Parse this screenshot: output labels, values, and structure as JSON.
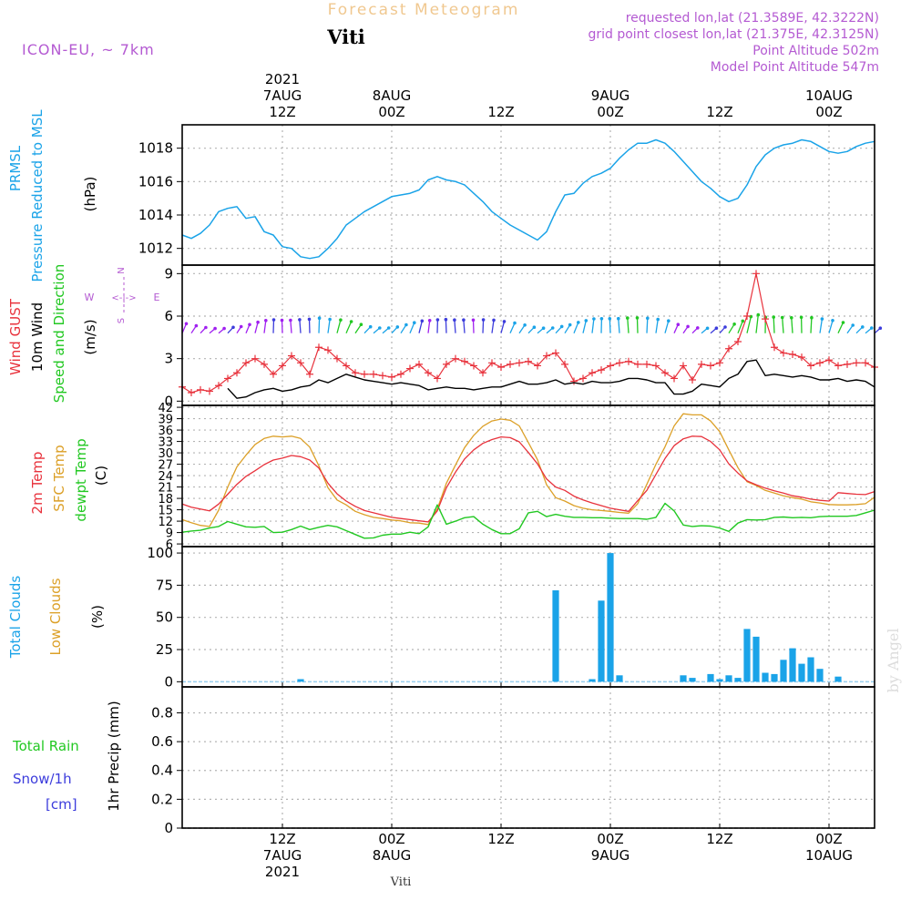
{
  "header": {
    "title": "Forecast Meteogram",
    "location": "Viti",
    "model": "ICON-EU, ~ 7km",
    "requested": "requested lon,lat (21.3589E, 42.3222N)",
    "grid_point": "grid point closest lon,lat (21.375E, 42.3125N)",
    "point_altitude": "Point Altitude 502m",
    "model_altitude": "Model Point Altitude 547m",
    "credit": "by Angel",
    "footer_location": "Viti"
  },
  "time_axis": {
    "top_labels": [
      {
        "x": 12,
        "lines": [
          "2021",
          "7AUG",
          "12Z"
        ]
      },
      {
        "x": 24,
        "lines": [
          "8AUG",
          "00Z"
        ]
      },
      {
        "x": 36,
        "lines": [
          "12Z"
        ]
      },
      {
        "x": 48,
        "lines": [
          "9AUG",
          "00Z"
        ]
      },
      {
        "x": 60,
        "lines": [
          "12Z"
        ]
      },
      {
        "x": 72,
        "lines": [
          "10AUG",
          "00Z"
        ]
      }
    ],
    "bottom_labels": [
      {
        "x": 12,
        "lines": [
          "12Z",
          "7AUG",
          "2021"
        ]
      },
      {
        "x": 24,
        "lines": [
          "00Z",
          "8AUG"
        ]
      },
      {
        "x": 36,
        "lines": [
          "12Z"
        ]
      },
      {
        "x": 48,
        "lines": [
          "00Z",
          "9AUG"
        ]
      },
      {
        "x": 60,
        "lines": [
          "12Z"
        ]
      },
      {
        "x": 72,
        "lines": [
          "00Z",
          "10AUG"
        ]
      }
    ]
  },
  "colors": {
    "pressure": "#1aa3e8",
    "gust": "#e8323c",
    "wind": "#000000",
    "t2m": "#e8323c",
    "sfc": "#dca028",
    "dew": "#22c822",
    "clouds_total": "#1aa3e8",
    "clouds_low": "#dca028",
    "rain": "#22c822",
    "snow": "#3c3cdc",
    "meta": "#b45ad2",
    "title": "#f0c890"
  },
  "panels": {
    "pressure": {
      "label_lines": [
        "PRMSL",
        "Pressure Reduced to MSL"
      ],
      "unit": "(hPa)"
    },
    "wind": {
      "label_lines": [
        "Wind GUST",
        "10m Wind",
        "Speed and Direction"
      ],
      "unit": "(m/s)",
      "compass": {
        "n": "N",
        "s": "S",
        "w": "W",
        "e": "E",
        "arrows": "<-|->"
      }
    },
    "temp": {
      "label_lines": [
        "2m Temp",
        "SFC Temp",
        "dewpt Temp"
      ],
      "unit": "(C)"
    },
    "clouds": {
      "label_lines": [
        "Total Clouds",
        "Low Clouds"
      ],
      "unit": "(%)"
    },
    "precip": {
      "label_lines": [
        "Total  Rain",
        "Snow/1h",
        "[cm]"
      ],
      "unit": "1hr Precip (mm)"
    }
  },
  "chart_data": [
    {
      "type": "line",
      "name": "pressure",
      "xlabel": "forecast hour",
      "ylabel": "(hPa)",
      "ylim": [
        1011,
        1019.4
      ],
      "yticks": [
        1012,
        1014,
        1016,
        1018
      ],
      "xlim": [
        1,
        77
      ],
      "x": [
        1,
        2,
        3,
        4,
        5,
        6,
        7,
        8,
        9,
        10,
        11,
        12,
        13,
        14,
        15,
        16,
        17,
        18,
        19,
        20,
        21,
        22,
        23,
        24,
        25,
        26,
        27,
        28,
        29,
        30,
        31,
        32,
        33,
        34,
        35,
        36,
        37,
        38,
        39,
        40,
        41,
        42,
        43,
        44,
        45,
        46,
        47,
        48,
        49,
        50,
        51,
        52,
        53,
        54,
        55,
        56,
        57,
        58,
        59,
        60,
        61,
        62,
        63,
        64,
        65,
        66,
        67,
        68,
        69,
        70,
        71,
        72,
        73,
        74,
        75,
        76,
        77
      ],
      "series": [
        {
          "name": "PRMSL",
          "values": [
            1012.8,
            1012.6,
            1012.9,
            1013.4,
            1014.2,
            1014.4,
            1014.5,
            1013.8,
            1013.9,
            1013.0,
            1012.8,
            1012.1,
            1012.0,
            1011.5,
            1011.4,
            1011.5,
            1012.0,
            1012.6,
            1013.4,
            1013.8,
            1014.2,
            1014.5,
            1014.8,
            1015.1,
            1015.2,
            1015.3,
            1015.5,
            1016.1,
            1016.3,
            1016.1,
            1016.0,
            1015.8,
            1015.3,
            1014.8,
            1014.2,
            1013.8,
            1013.4,
            1013.1,
            1012.8,
            1012.5,
            1013.0,
            1014.2,
            1015.2,
            1015.3,
            1015.9,
            1016.3,
            1016.5,
            1016.8,
            1017.4,
            1017.9,
            1018.3,
            1018.3,
            1018.5,
            1018.3,
            1017.8,
            1017.2,
            1016.6,
            1016.0,
            1015.6,
            1015.1,
            1014.8,
            1015.0,
            1015.8,
            1016.9,
            1017.6,
            1018.0,
            1018.2,
            1018.3,
            1018.5,
            1018.4,
            1018.1,
            1017.8,
            1017.7,
            1017.8,
            1018.1,
            1018.3,
            1018.4
          ]
        }
      ]
    },
    {
      "type": "line",
      "name": "wind",
      "ylabel": "(m/s)",
      "ylim": [
        -0.3,
        9.6
      ],
      "yticks": [
        0,
        3,
        6,
        9
      ],
      "xlim": [
        1,
        77
      ],
      "x": [
        1,
        2,
        3,
        4,
        5,
        6,
        7,
        8,
        9,
        10,
        11,
        12,
        13,
        14,
        15,
        16,
        17,
        18,
        19,
        20,
        21,
        22,
        23,
        24,
        25,
        26,
        27,
        28,
        29,
        30,
        31,
        32,
        33,
        34,
        35,
        36,
        37,
        38,
        39,
        40,
        41,
        42,
        43,
        44,
        45,
        46,
        47,
        48,
        49,
        50,
        51,
        52,
        53,
        54,
        55,
        56,
        57,
        58,
        59,
        60,
        61,
        62,
        63,
        64,
        65,
        66,
        67,
        68,
        69,
        70,
        71,
        72,
        73,
        74,
        75,
        76,
        77
      ],
      "series": [
        {
          "name": "Wind GUST",
          "values": [
            1.0,
            0.6,
            0.8,
            0.7,
            1.1,
            1.6,
            2.0,
            2.7,
            3.0,
            2.6,
            1.9,
            2.5,
            3.2,
            2.7,
            1.9,
            3.8,
            3.6,
            3.0,
            2.5,
            2.0,
            1.9,
            1.9,
            1.8,
            1.7,
            1.9,
            2.3,
            2.6,
            2.0,
            1.6,
            2.6,
            3.0,
            2.8,
            2.5,
            2.0,
            2.7,
            2.4,
            2.6,
            2.7,
            2.8,
            2.5,
            3.2,
            3.4,
            2.6,
            1.4,
            1.6,
            2.0,
            2.2,
            2.5,
            2.7,
            2.8,
            2.6,
            2.6,
            2.5,
            2.0,
            1.6,
            2.5,
            1.5,
            2.6,
            2.5,
            2.7,
            3.7,
            4.2,
            6.0,
            9.0,
            5.8,
            3.8,
            3.4,
            3.3,
            3.1,
            2.5,
            2.7,
            2.9,
            2.5,
            2.6,
            2.7,
            2.7,
            2.4
          ]
        },
        {
          "name": "10m Wind",
          "values": [
            null,
            null,
            null,
            null,
            null,
            0.9,
            0.2,
            0.3,
            0.6,
            0.8,
            0.9,
            0.7,
            0.8,
            1.0,
            1.1,
            1.5,
            1.3,
            1.6,
            1.9,
            1.7,
            1.5,
            1.4,
            1.3,
            1.2,
            1.3,
            1.2,
            1.1,
            0.8,
            0.9,
            1.0,
            0.9,
            0.9,
            0.8,
            0.9,
            1.0,
            1.0,
            1.2,
            1.4,
            1.2,
            1.2,
            1.3,
            1.5,
            1.2,
            1.3,
            1.2,
            1.4,
            1.3,
            1.3,
            1.4,
            1.6,
            1.6,
            1.5,
            1.3,
            1.3,
            0.5,
            0.5,
            0.7,
            1.2,
            1.1,
            1.0,
            1.6,
            1.9,
            2.8,
            2.9,
            1.8,
            1.9,
            1.8,
            1.7,
            1.8,
            1.7,
            1.5,
            1.5,
            1.6,
            1.4,
            1.5,
            1.4,
            1.0
          ]
        }
      ],
      "direction_arrow_colors": {
        "low": "#3c3cdc",
        "mid": "#1aa3e8",
        "high": "#22c822",
        "calm": "#a020f0"
      }
    },
    {
      "type": "line",
      "name": "temperature",
      "ylabel": "(C)",
      "ylim": [
        5.3,
        42.5
      ],
      "yticks": [
        6,
        9,
        12,
        15,
        18,
        21,
        24,
        27,
        30,
        33,
        36,
        39,
        42
      ],
      "xlim": [
        1,
        77
      ],
      "x": [
        1,
        2,
        3,
        4,
        5,
        6,
        7,
        8,
        9,
        10,
        11,
        12,
        13,
        14,
        15,
        16,
        17,
        18,
        19,
        20,
        21,
        22,
        23,
        24,
        25,
        26,
        27,
        28,
        29,
        30,
        31,
        32,
        33,
        34,
        35,
        36,
        37,
        38,
        39,
        40,
        41,
        42,
        43,
        44,
        45,
        46,
        47,
        48,
        49,
        50,
        51,
        52,
        53,
        54,
        55,
        56,
        57,
        58,
        59,
        60,
        61,
        62,
        63,
        64,
        65,
        66,
        67,
        68,
        69,
        70,
        71,
        72,
        73,
        74,
        75,
        76,
        77
      ],
      "series": [
        {
          "name": "2m Temp",
          "values": [
            16.5,
            15.7,
            15.2,
            14.7,
            16.5,
            19.1,
            21.7,
            23.8,
            25.3,
            26.9,
            28.1,
            28.6,
            29.3,
            29.0,
            28.1,
            26.0,
            22.0,
            19.2,
            17.3,
            15.9,
            14.8,
            14.2,
            13.6,
            13.0,
            12.7,
            12.4,
            12.1,
            11.8,
            14.7,
            20.8,
            24.9,
            28.4,
            30.8,
            32.5,
            33.5,
            34.2,
            34.0,
            32.9,
            30.1,
            27.1,
            23.1,
            21.0,
            20.1,
            18.6,
            17.6,
            16.8,
            16.1,
            15.4,
            15.0,
            14.6,
            17.4,
            20.1,
            24.3,
            28.5,
            31.9,
            33.7,
            34.4,
            34.3,
            33.0,
            30.8,
            27.1,
            24.7,
            22.6,
            21.6,
            20.7,
            20.0,
            19.4,
            18.7,
            18.3,
            17.8,
            17.5,
            17.3,
            19.5,
            19.3,
            19.1,
            19.0,
            19.8
          ]
        },
        {
          "name": "SFC Temp",
          "values": [
            12.4,
            11.6,
            10.9,
            10.6,
            14.9,
            21.0,
            26.3,
            29.4,
            32.2,
            33.8,
            34.4,
            34.2,
            34.4,
            33.8,
            31.5,
            26.6,
            20.8,
            17.6,
            16.3,
            14.6,
            13.7,
            13.0,
            12.7,
            12.3,
            12.1,
            11.6,
            11.5,
            11.1,
            15.2,
            22.0,
            26.8,
            31.4,
            34.6,
            37.0,
            38.4,
            38.9,
            38.6,
            37.1,
            32.7,
            28.2,
            21.6,
            18.2,
            17.3,
            16.1,
            15.4,
            15.0,
            14.8,
            14.6,
            14.3,
            14.1,
            16.6,
            21.7,
            27.0,
            31.6,
            37.1,
            40.3,
            40.0,
            40.0,
            38.4,
            35.6,
            30.8,
            26.1,
            22.4,
            21.4,
            20.1,
            19.4,
            18.7,
            18.2,
            17.8,
            17.1,
            16.8,
            16.4,
            16.3,
            16.3,
            16.4,
            16.6,
            18.3
          ]
        },
        {
          "name": "dewpt Temp",
          "values": [
            9.1,
            9.4,
            9.6,
            10.2,
            10.6,
            11.9,
            11.2,
            10.5,
            10.4,
            10.6,
            9.0,
            9.1,
            9.8,
            10.7,
            9.8,
            10.4,
            10.9,
            10.5,
            9.5,
            8.5,
            7.5,
            7.6,
            8.3,
            8.6,
            8.6,
            9.1,
            8.7,
            10.5,
            16.3,
            11.2,
            12.0,
            12.9,
            13.2,
            11.2,
            9.8,
            8.7,
            8.7,
            10.0,
            14.2,
            14.6,
            13.2,
            13.8,
            13.3,
            13.0,
            13.0,
            12.9,
            12.9,
            12.8,
            12.7,
            12.7,
            12.7,
            12.5,
            13.0,
            16.7,
            14.7,
            11.0,
            10.6,
            10.8,
            10.7,
            10.2,
            9.3,
            11.5,
            12.4,
            12.3,
            12.4,
            13.0,
            13.1,
            12.9,
            13.0,
            12.9,
            13.2,
            13.3,
            13.3,
            13.3,
            13.5,
            14.2,
            14.9
          ]
        }
      ]
    },
    {
      "type": "bar",
      "name": "clouds",
      "ylabel": "(%)",
      "ylim": [
        -4,
        105
      ],
      "yticks": [
        0,
        25,
        50,
        75,
        100
      ],
      "xlim": [
        1,
        77
      ],
      "x": [
        14,
        42,
        46,
        47,
        48,
        49,
        56,
        57,
        59,
        60,
        61,
        62,
        63,
        64,
        65,
        66,
        67,
        68,
        69,
        70,
        71,
        72,
        73
      ],
      "series": [
        {
          "name": "Total Clouds",
          "values": [
            2,
            71,
            2,
            63,
            100,
            5,
            5,
            3,
            6,
            2,
            5,
            3,
            41,
            35,
            7,
            6,
            17,
            26,
            14,
            19,
            10,
            0,
            4
          ]
        },
        {
          "name": "Low Clouds",
          "values": [
            0,
            0,
            0,
            0,
            0,
            0,
            0,
            0,
            0,
            0,
            0,
            0,
            0,
            0,
            0,
            0,
            0,
            0,
            0,
            0,
            0,
            0,
            0
          ]
        }
      ]
    },
    {
      "type": "bar",
      "name": "precipitation",
      "ylabel": "1hr Precip (mm)",
      "ylim": [
        0,
        0.98
      ],
      "yticks": [
        0,
        0.2,
        0.4,
        0.6,
        0.8
      ],
      "ytick_labels": [
        "0",
        "0.2",
        "0.4",
        "0.6",
        "0.8"
      ],
      "xlim": [
        1,
        77
      ],
      "x": [],
      "series": [
        {
          "name": "Total Rain",
          "values": []
        },
        {
          "name": "Snow/1h",
          "values": []
        }
      ]
    }
  ]
}
